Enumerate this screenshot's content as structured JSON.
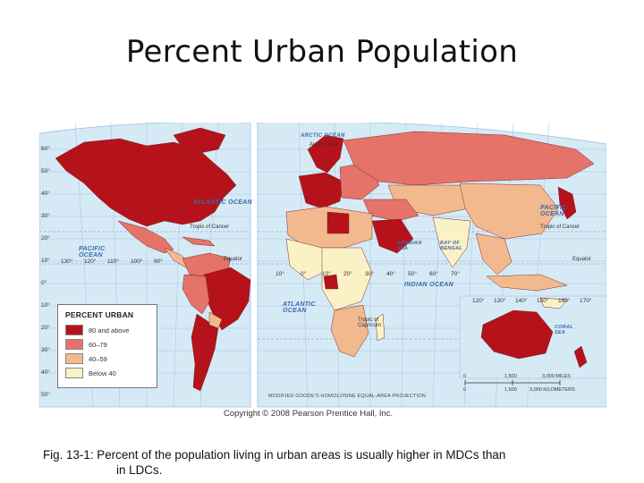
{
  "slide": {
    "title": "Percent Urban Population",
    "caption_line1": "Fig. 13-1: Percent of the population living in urban areas is usually higher in MDCs than",
    "caption_line2": "in LDCs.",
    "copyright": "Copyright © 2008 Pearson Prentice Hall, Inc."
  },
  "map": {
    "projection": "MODIFIED GOODE'S HOMOLOSINE EQUAL-AREA PROJECTION",
    "ocean_labels": {
      "atlantic_north": "ATLANTIC OCEAN",
      "atlantic_south": "ATLANTIC OCEAN",
      "pacific_west": "PACIFIC OCEAN",
      "pacific_east": "PACIFIC OCEAN",
      "indian": "INDIAN OCEAN",
      "arctic": "ARCTIC OCEAN",
      "arabian_sea": "ARABIAN SEA",
      "bay_of_bengal": "BAY OF BENGAL",
      "coral_sea": "CORAL SEA"
    },
    "line_labels": {
      "tropic_cancer_west": "Tropic of Cancer",
      "tropic_cancer_east": "Tropic of Cancer",
      "equator_west": "Equator",
      "equator_east": "Equator",
      "tropic_capricorn": "Tropic of Capricorn",
      "arctic_circle": "Arctic Circle"
    },
    "lat_labels_left": [
      "60°",
      "50°",
      "40°",
      "30°",
      "20°",
      "10°",
      "0°",
      "10°",
      "20°",
      "30°",
      "40°",
      "50°"
    ],
    "lon_labels_bottom_west": [
      "130°",
      "120°",
      "110°",
      "100°",
      "90°"
    ],
    "lon_labels_bottom_east": [
      "10°",
      "0°",
      "10°",
      "20°",
      "30°",
      "40°",
      "50°",
      "60°",
      "70°"
    ],
    "lon_labels_oceania": [
      "120°",
      "130°",
      "140°",
      "150°",
      "160°",
      "170°"
    ],
    "scale": {
      "miles": [
        "0",
        "1,500",
        "3,000 MILES"
      ],
      "km": [
        "0",
        "1,500",
        "3,000 KILOMETERS"
      ]
    }
  },
  "legend": {
    "title": "PERCENT URBAN",
    "items": [
      {
        "label": "80 and above",
        "color": "#b5121b"
      },
      {
        "label": "60–79",
        "color": "#e5736a"
      },
      {
        "label": "40–59",
        "color": "#f3b98e"
      },
      {
        "label": "Below 40",
        "color": "#fbf1c6"
      }
    ]
  },
  "colors": {
    "ocean": "#d6eaf6",
    "grid": "#9fc4e0",
    "high": "#b5121b",
    "mid_high": "#e5736a",
    "mid_low": "#f3b98e",
    "low": "#fbf1c6"
  }
}
